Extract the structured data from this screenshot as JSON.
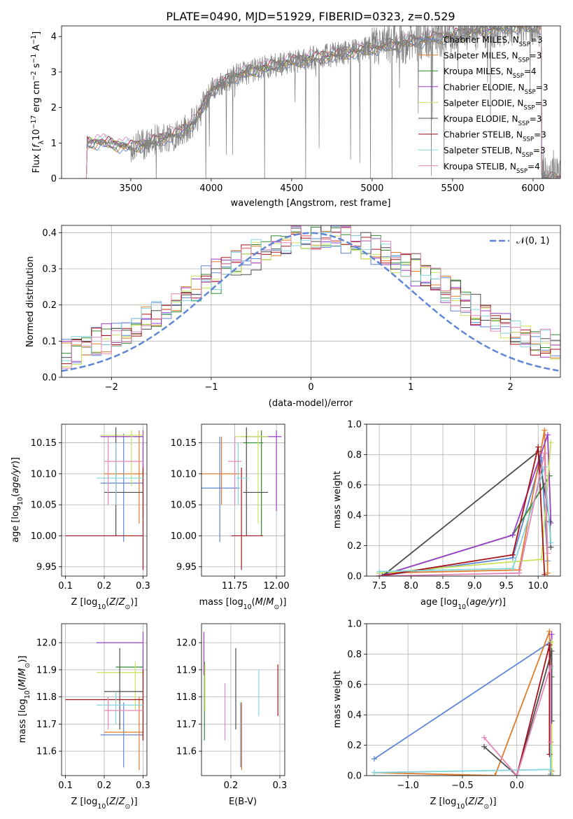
{
  "figure_title": "PLATE=0490, MJD=51929, FIBERID=0323, z=0.529",
  "colors": [
    "#5f86d6",
    "#e07b2a",
    "#2f8a2f",
    "#9a3fc9",
    "#c8e35a",
    "#4d4d4d",
    "#a5121a",
    "#82d5dc",
    "#e386b8"
  ],
  "chart_data": [
    {
      "id": "spectrum",
      "type": "line",
      "title": "PLATE=0490, MJD=51929, FIBERID=0323, z=0.529",
      "xlabel": "wavelength [Angstrom, rest frame]",
      "ylabel": "Flux [f_λ 10^-17 erg cm^-2 s^-1 A^-1]",
      "xlim": [
        3070,
        6170
      ],
      "ylim": [
        0,
        4.3
      ],
      "xticks": [
        "3500",
        "4000",
        "4500",
        "5000",
        "5500",
        "6000"
      ],
      "yticks": [
        "0",
        "1",
        "2",
        "3",
        "4"
      ],
      "grid": false,
      "legend_position": "top-right",
      "series": [
        {
          "name": "Chabrier MILES, N_SSP=3"
        },
        {
          "name": "Salpeter MILES, N_SSP=3"
        },
        {
          "name": "Kroupa MILES, N_SSP=4"
        },
        {
          "name": "Chabrier ELODIE, N_SSP=3"
        },
        {
          "name": "Salpeter ELODIE, N_SSP=3"
        },
        {
          "name": "Kroupa ELODIE, N_SSP=3"
        },
        {
          "name": "Chabrier STELIB, N_SSP=3"
        },
        {
          "name": "Salpeter STELIB, N_SSP=3"
        },
        {
          "name": "Kroupa STELIB, N_SSP=4"
        }
      ],
      "continuum": {
        "x": [
          3200,
          3230,
          3300,
          3500,
          3600,
          3700,
          3800,
          3900,
          4000,
          4150,
          4300,
          4500,
          4700,
          4900,
          5100,
          5300,
          5500,
          5700,
          5900,
          6050
        ],
        "y": [
          0,
          1.0,
          1.05,
          0.9,
          1.0,
          1.15,
          1.3,
          1.6,
          2.5,
          2.9,
          3.1,
          3.3,
          3.45,
          3.6,
          3.75,
          3.9,
          4.05,
          4.2,
          4.3,
          4.3
        ]
      }
    },
    {
      "id": "residuals",
      "type": "line",
      "xlabel": "(data-model)/error",
      "ylabel": "Normed distribution",
      "xlim": [
        -2.5,
        2.5
      ],
      "ylim": [
        0,
        0.42
      ],
      "xticks": [
        "−2",
        "−1",
        "0",
        "1",
        "2"
      ],
      "yticks": [
        "0.0",
        "0.1",
        "0.2",
        "0.3",
        "0.4"
      ],
      "grid": true,
      "legend_position": "top-right",
      "legend": "𝒩(0, 1)"
    },
    {
      "id": "age_vs_Z",
      "type": "scatter",
      "xlabel": "Z [log10(Z/Z⊙)]",
      "ylabel": "age [log10(age/yr)]",
      "xlim": [
        0.09,
        0.31
      ],
      "ylim": [
        9.935,
        10.18
      ],
      "xticks": [
        "0.1",
        "0.2",
        "0.3"
      ],
      "yticks": [
        "9.95",
        "10.00",
        "10.05",
        "10.10",
        "10.15"
      ],
      "grid": true,
      "points": [
        {
          "x": 0.25,
          "y": 10.085,
          "xlo": 0.19,
          "xhi": 0.3,
          "ylo": 9.99,
          "yhi": 10.165
        },
        {
          "x": 0.29,
          "y": 10.1,
          "xlo": 0.2,
          "xhi": 0.3,
          "ylo": 10.02,
          "yhi": 10.17
        },
        {
          "x": 0.3,
          "y": 10.085,
          "xlo": 0.3,
          "xhi": 0.3,
          "ylo": 10.03,
          "yhi": 10.15
        },
        {
          "x": 0.3,
          "y": 10.16,
          "xlo": 0.19,
          "xhi": 0.3,
          "ylo": 10.1,
          "yhi": 10.17
        },
        {
          "x": 0.27,
          "y": 10.162,
          "xlo": 0.19,
          "xhi": 0.3,
          "ylo": 10.08,
          "yhi": 10.17
        },
        {
          "x": 0.23,
          "y": 10.07,
          "xlo": 0.2,
          "xhi": 0.3,
          "ylo": 10.0,
          "yhi": 10.175
        },
        {
          "x": 0.3,
          "y": 10.0,
          "xlo": 0.1,
          "xhi": 0.3,
          "ylo": 9.945,
          "yhi": 10.11
        },
        {
          "x": 0.23,
          "y": 10.093,
          "xlo": 0.18,
          "xhi": 0.3,
          "ylo": 10.05,
          "yhi": 10.15
        },
        {
          "x": 0.21,
          "y": 10.12,
          "xlo": 0.2,
          "xhi": 0.3,
          "ylo": 10.05,
          "yhi": 10.16
        }
      ]
    },
    {
      "id": "age_vs_mass",
      "type": "scatter",
      "xlabel": "mass [log10(M/M⊙)]",
      "xlim": [
        11.55,
        12.05
      ],
      "ylim": [
        9.935,
        10.18
      ],
      "xticks": [
        "11.75",
        "12.00"
      ],
      "yticks": [
        "9.95",
        "10.00",
        "10.05",
        "10.10",
        "10.15"
      ],
      "grid": true,
      "points": [
        {
          "x": 11.66,
          "y": 10.077,
          "xlo": 11.55,
          "xhi": 11.78,
          "ylo": 9.99,
          "yhi": 10.16
        },
        {
          "x": 11.67,
          "y": 10.1,
          "xlo": 11.55,
          "xhi": 11.78,
          "ylo": 10.05,
          "yhi": 10.16
        },
        {
          "x": 11.91,
          "y": 10.15,
          "xlo": 11.8,
          "xhi": 11.92,
          "ylo": 10.0,
          "yhi": 10.17
        },
        {
          "x": 12.0,
          "y": 10.16,
          "xlo": 11.8,
          "xhi": 12.03,
          "ylo": 10.04,
          "yhi": 10.17
        },
        {
          "x": 11.89,
          "y": 10.16,
          "xlo": 11.75,
          "xhi": 11.95,
          "ylo": 10.02,
          "yhi": 10.17
        },
        {
          "x": 11.82,
          "y": 10.07,
          "xlo": 11.8,
          "xhi": 11.95,
          "ylo": 10.0,
          "yhi": 10.175
        },
        {
          "x": 11.79,
          "y": 10.0,
          "xlo": 11.73,
          "xhi": 11.92,
          "ylo": 9.945,
          "yhi": 10.11
        },
        {
          "x": 11.77,
          "y": 10.093,
          "xlo": 11.76,
          "xhi": 11.83,
          "ylo": 10.05,
          "yhi": 10.15
        },
        {
          "x": 11.75,
          "y": 10.12,
          "xlo": 11.71,
          "xhi": 11.79,
          "ylo": 10.05,
          "yhi": 10.16
        }
      ]
    },
    {
      "id": "weight_vs_age",
      "type": "line",
      "xlabel": "age [log10(age/yr)]",
      "ylabel": "mass weight",
      "xlim": [
        7.3,
        10.35
      ],
      "ylim": [
        0,
        1.0
      ],
      "xticks": [
        "7.5",
        "8.0",
        "8.5",
        "9.0",
        "9.5",
        "10.0"
      ],
      "yticks": [
        "0.0",
        "0.2",
        "0.4",
        "0.6",
        "0.8",
        "1.0"
      ],
      "grid": true,
      "series": [
        {
          "x": [
            7.5,
            9.6,
            10.05,
            10.15
          ],
          "y": [
            0.0,
            0.12,
            0.78,
            0.1
          ]
        },
        {
          "x": [
            7.5,
            9.7,
            10.1,
            10.15
          ],
          "y": [
            0.02,
            0.04,
            0.96,
            0.02
          ]
        },
        {
          "x": [
            7.5,
            9.6,
            10.18
          ],
          "y": [
            0.0,
            0.27,
            0.66
          ]
        },
        {
          "x": [
            7.5,
            9.6,
            10.15,
            10.2
          ],
          "y": [
            0.0,
            0.27,
            0.93,
            0.35
          ]
        },
        {
          "x": [
            7.5,
            10.05,
            10.2
          ],
          "y": [
            0.02,
            0.11,
            0.88
          ]
        },
        {
          "x": [
            7.55,
            10.0,
            10.18,
            10.2
          ],
          "y": [
            0.0,
            0.82,
            0.36,
            0.19
          ]
        },
        {
          "x": [
            7.5,
            9.6,
            10.0,
            10.1
          ],
          "y": [
            0.0,
            0.14,
            0.85,
            0.01
          ]
        },
        {
          "x": [
            7.5,
            9.6,
            10.1,
            10.2
          ],
          "y": [
            0.03,
            0.05,
            0.72,
            0.22
          ]
        },
        {
          "x": [
            7.5,
            9.7,
            10.1,
            10.15
          ],
          "y": [
            0.0,
            0.02,
            0.81,
            0.15
          ]
        }
      ]
    },
    {
      "id": "mass_vs_Z",
      "type": "scatter",
      "xlabel": "Z [log10(Z/Z⊙)]",
      "ylabel": "mass [log10(M/M⊙)]",
      "xlim": [
        0.09,
        0.31
      ],
      "ylim": [
        11.51,
        12.07
      ],
      "xticks": [
        "0.1",
        "0.2",
        "0.3"
      ],
      "yticks": [
        "11.6",
        "11.7",
        "11.8",
        "11.9",
        "12.0"
      ],
      "grid": true,
      "points": [
        {
          "x": 0.25,
          "y": 11.66,
          "xlo": 0.19,
          "xhi": 0.3,
          "ylo": 11.54,
          "yhi": 11.78
        },
        {
          "x": 0.29,
          "y": 11.67,
          "xlo": 0.2,
          "xhi": 0.3,
          "ylo": 11.53,
          "yhi": 11.8
        },
        {
          "x": 0.3,
          "y": 11.91,
          "xlo": 0.23,
          "xhi": 0.3,
          "ylo": 11.64,
          "yhi": 11.98
        },
        {
          "x": 0.3,
          "y": 12.0,
          "xlo": 0.18,
          "xhi": 0.3,
          "ylo": 11.88,
          "yhi": 12.04
        },
        {
          "x": 0.28,
          "y": 11.89,
          "xlo": 0.18,
          "xhi": 0.3,
          "ylo": 11.75,
          "yhi": 11.93
        },
        {
          "x": 0.24,
          "y": 11.82,
          "xlo": 0.2,
          "xhi": 0.3,
          "ylo": 11.68,
          "yhi": 11.98
        },
        {
          "x": 0.3,
          "y": 11.79,
          "xlo": 0.1,
          "xhi": 0.3,
          "ylo": 11.64,
          "yhi": 11.9
        },
        {
          "x": 0.23,
          "y": 11.77,
          "xlo": 0.18,
          "xhi": 0.3,
          "ylo": 11.7,
          "yhi": 11.82
        },
        {
          "x": 0.21,
          "y": 11.75,
          "xlo": 0.2,
          "xhi": 0.3,
          "ylo": 11.68,
          "yhi": 11.8
        }
      ]
    },
    {
      "id": "mass_vs_ebv",
      "type": "scatter",
      "xlabel": "E(B-V)",
      "xlim": [
        0.14,
        0.31
      ],
      "ylim": [
        11.51,
        12.07
      ],
      "xticks": [
        "0.2",
        "0.3"
      ],
      "yticks": [
        "11.6",
        "11.7",
        "11.8",
        "11.9",
        "12.0"
      ],
      "grid": true,
      "points": [
        {
          "x": 0.22,
          "ylo": 11.54,
          "yhi": 11.78
        },
        {
          "x": 0.222,
          "ylo": 11.53,
          "yhi": 11.78
        },
        {
          "x": 0.146,
          "ylo": 11.64,
          "yhi": 11.93
        },
        {
          "x": 0.145,
          "ylo": 11.88,
          "yhi": 12.04
        },
        {
          "x": 0.147,
          "ylo": 11.75,
          "yhi": 11.92
        },
        {
          "x": 0.21,
          "ylo": 11.68,
          "yhi": 11.98
        },
        {
          "x": 0.296,
          "ylo": 11.73,
          "yhi": 11.92
        },
        {
          "x": 0.257,
          "ylo": 11.73,
          "yhi": 11.9
        },
        {
          "x": 0.188,
          "ylo": 11.64,
          "yhi": 11.85
        }
      ]
    },
    {
      "id": "weight_vs_Z",
      "type": "line",
      "xlabel": "Z [log10(Z/Z⊙)]",
      "ylabel": "mass weight",
      "xlim": [
        -1.38,
        0.4
      ],
      "ylim": [
        0,
        1.0
      ],
      "xticks": [
        "−1.0",
        "−0.5",
        "0.0"
      ],
      "yticks": [
        "0.0",
        "0.2",
        "0.4",
        "0.6",
        "0.8",
        "1.0"
      ],
      "grid": true,
      "series": [
        {
          "x": [
            -1.31,
            0.31,
            0.31
          ],
          "y": [
            0.11,
            0.88,
            0.01
          ]
        },
        {
          "x": [
            -1.31,
            -0.2,
            0.3,
            0.32
          ],
          "y": [
            0.02,
            0.0,
            0.95,
            0.03
          ]
        },
        {
          "x": [
            0.32,
            0.32
          ],
          "y": [
            0.0,
            0.65
          ]
        },
        {
          "x": [
            0.32,
            0.32
          ],
          "y": [
            0.0,
            0.93
          ]
        },
        {
          "x": [
            0.32,
            0.32
          ],
          "y": [
            0.0,
            0.88
          ]
        },
        {
          "x": [
            -0.3,
            0.0,
            0.32,
            0.32
          ],
          "y": [
            0.19,
            0.0,
            0.82,
            0.36
          ]
        },
        {
          "x": [
            0.0,
            0.3,
            0.3
          ],
          "y": [
            0.0,
            0.86,
            0.14
          ]
        },
        {
          "x": [
            -1.31,
            0.31,
            0.31
          ],
          "y": [
            0.02,
            0.04,
            0.71
          ]
        },
        {
          "x": [
            -0.3,
            0.0,
            0.31,
            0.31
          ],
          "y": [
            0.25,
            0.0,
            0.72,
            0.22
          ]
        }
      ]
    }
  ]
}
